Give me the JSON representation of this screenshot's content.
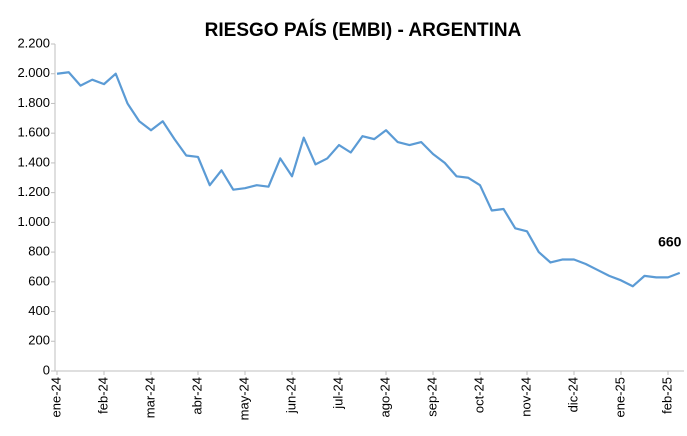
{
  "chart_data": {
    "type": "line",
    "title": "RIESGO PAÍS (EMBI) - ARGENTINA",
    "categories": [
      "ene-24",
      null,
      null,
      null,
      "feb-24",
      null,
      null,
      null,
      "mar-24",
      null,
      null,
      null,
      "abr-24",
      null,
      null,
      null,
      "may-24",
      null,
      null,
      null,
      "jun-24",
      null,
      null,
      null,
      "jul-24",
      null,
      null,
      null,
      "ago-24",
      null,
      null,
      null,
      "sep-24",
      null,
      null,
      null,
      "oct-24",
      null,
      null,
      null,
      "nov-24",
      null,
      null,
      null,
      "dic-24",
      null,
      null,
      null,
      "ene-25",
      null,
      null,
      null,
      "feb-25",
      null
    ],
    "series": [
      {
        "name": "EMBI",
        "color": "#5b9bd5",
        "values": [
          2000,
          2010,
          1920,
          1960,
          1930,
          2000,
          1800,
          1680,
          1620,
          1680,
          1560,
          1450,
          1440,
          1250,
          1350,
          1220,
          1230,
          1250,
          1240,
          1430,
          1310,
          1570,
          1390,
          1430,
          1520,
          1470,
          1580,
          1560,
          1620,
          1540,
          1520,
          1540,
          1460,
          1400,
          1310,
          1300,
          1250,
          1080,
          1090,
          960,
          940,
          800,
          730,
          750,
          750,
          720,
          680,
          640,
          610,
          570,
          640,
          630,
          630,
          660
        ]
      }
    ],
    "ylim": [
      0,
      2200
    ],
    "yticks": [
      0,
      200,
      400,
      600,
      800,
      {
        "value": 1000,
        "label": "1.000"
      },
      {
        "value": 1200,
        "label": "1.200"
      },
      {
        "value": 1400,
        "label": "1.400"
      },
      {
        "value": 1600,
        "label": "1.600"
      },
      {
        "value": 1800,
        "label": "1.800"
      },
      {
        "value": 2000,
        "label": "2.000"
      },
      {
        "value": 2200,
        "label": "2.200"
      }
    ],
    "grid": false
  }
}
